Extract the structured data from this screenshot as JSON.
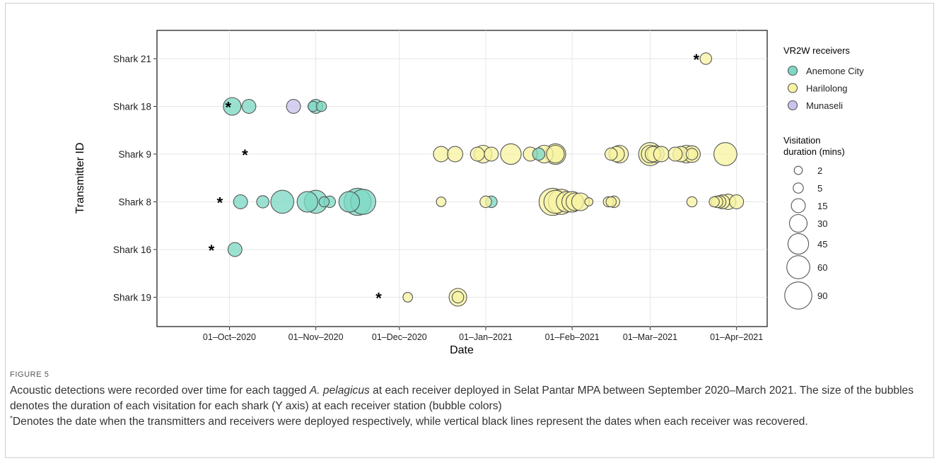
{
  "chart_data": {
    "type": "scatter",
    "subtype": "bubble",
    "xlabel": "Date",
    "ylabel": "Transmitter ID",
    "xlim": [
      "2020-09-05",
      "2021-04-12"
    ],
    "x_ticks": [
      {
        "date": "2020-10-01",
        "label": "01–Oct–2020"
      },
      {
        "date": "2020-11-01",
        "label": "01–Nov–2020"
      },
      {
        "date": "2020-12-01",
        "label": "01–Dec–2020"
      },
      {
        "date": "2021-01-01",
        "label": "01–Jan–2021"
      },
      {
        "date": "2021-02-01",
        "label": "01–Feb–2021"
      },
      {
        "date": "2021-03-01",
        "label": "01–Mar–2021"
      },
      {
        "date": "2021-04-01",
        "label": "01–Apr–2021"
      }
    ],
    "categories": [
      "Shark 21",
      "Shark 18",
      "Shark 9",
      "Shark 8",
      "Shark 16",
      "Shark 19"
    ],
    "grid": true,
    "legend_position": "right",
    "receivers_title": "VR2W receivers",
    "receivers": [
      {
        "name": "Anemone City",
        "color": "#7dd9c4"
      },
      {
        "name": "Harilolong",
        "color": "#f7f3a3"
      },
      {
        "name": "Munaseli",
        "color": "#c9c3ec"
      }
    ],
    "size_title_lines": [
      "Visitation",
      "duration (mins)"
    ],
    "size_legend": [
      2,
      5,
      15,
      30,
      45,
      60,
      90
    ],
    "deployments": [
      {
        "shark": "Shark 21",
        "date": "2021-03-18"
      },
      {
        "shark": "Shark 18",
        "date": "2020-10-01"
      },
      {
        "shark": "Shark 9",
        "date": "2020-10-07"
      },
      {
        "shark": "Shark 8",
        "date": "2020-09-28"
      },
      {
        "shark": "Shark 16",
        "date": "2020-09-25"
      },
      {
        "shark": "Shark 19",
        "date": "2020-11-24"
      }
    ],
    "series": [
      {
        "name": "Anemone City",
        "points": [
          {
            "shark": "Shark 18",
            "date": "2020-10-02",
            "duration": 30
          },
          {
            "shark": "Shark 18",
            "date": "2020-10-08",
            "duration": 15
          },
          {
            "shark": "Shark 18",
            "date": "2020-10-31",
            "duration": 5
          },
          {
            "shark": "Shark 18",
            "date": "2020-11-01",
            "duration": 15
          },
          {
            "shark": "Shark 18",
            "date": "2020-11-03",
            "duration": 5
          },
          {
            "shark": "Shark 16",
            "date": "2020-10-03",
            "duration": 15
          },
          {
            "shark": "Shark 8",
            "date": "2020-10-05",
            "duration": 15
          },
          {
            "shark": "Shark 8",
            "date": "2020-10-13",
            "duration": 10
          },
          {
            "shark": "Shark 8",
            "date": "2020-10-20",
            "duration": 60
          },
          {
            "shark": "Shark 8",
            "date": "2020-10-29",
            "duration": 45
          },
          {
            "shark": "Shark 8",
            "date": "2020-11-01",
            "duration": 60
          },
          {
            "shark": "Shark 8",
            "date": "2020-11-04",
            "duration": 5
          },
          {
            "shark": "Shark 8",
            "date": "2020-11-06",
            "duration": 8
          },
          {
            "shark": "Shark 8",
            "date": "2020-11-13",
            "duration": 45
          },
          {
            "shark": "Shark 8",
            "date": "2020-11-16",
            "duration": 90
          },
          {
            "shark": "Shark 8",
            "date": "2020-11-18",
            "duration": 75
          },
          {
            "shark": "Shark 8",
            "date": "2021-01-03",
            "duration": 8
          },
          {
            "shark": "Shark 9",
            "date": "2021-01-20",
            "duration": 10
          }
        ]
      },
      {
        "name": "Harilolong",
        "points": [
          {
            "shark": "Shark 21",
            "date": "2021-03-21",
            "duration": 8
          },
          {
            "shark": "Shark 19",
            "date": "2020-12-04",
            "duration": 4
          },
          {
            "shark": "Shark 19",
            "date": "2020-12-22",
            "duration": 30
          },
          {
            "shark": "Shark 19",
            "date": "2020-12-22",
            "duration": 8
          },
          {
            "shark": "Shark 9",
            "date": "2020-12-16",
            "duration": 20
          },
          {
            "shark": "Shark 9",
            "date": "2020-12-21",
            "duration": 20
          },
          {
            "shark": "Shark 9",
            "date": "2020-12-29",
            "duration": 15
          },
          {
            "shark": "Shark 9",
            "date": "2020-12-31",
            "duration": 30
          },
          {
            "shark": "Shark 9",
            "date": "2021-01-03",
            "duration": 15
          },
          {
            "shark": "Shark 9",
            "date": "2021-01-10",
            "duration": 45
          },
          {
            "shark": "Shark 9",
            "date": "2021-01-17",
            "duration": 15
          },
          {
            "shark": "Shark 9",
            "date": "2021-01-22",
            "duration": 30
          },
          {
            "shark": "Shark 9",
            "date": "2021-01-26",
            "duration": 45
          },
          {
            "shark": "Shark 9",
            "date": "2021-01-26",
            "duration": 30
          },
          {
            "shark": "Shark 9",
            "date": "2021-02-15",
            "duration": 10
          },
          {
            "shark": "Shark 9",
            "date": "2021-02-17",
            "duration": 20
          },
          {
            "shark": "Shark 9",
            "date": "2021-02-18",
            "duration": 30
          },
          {
            "shark": "Shark 9",
            "date": "2021-03-01",
            "duration": 60
          },
          {
            "shark": "Shark 9",
            "date": "2021-03-01",
            "duration": 30
          },
          {
            "shark": "Shark 9",
            "date": "2021-03-02",
            "duration": 20
          },
          {
            "shark": "Shark 9",
            "date": "2021-03-03",
            "duration": 25
          },
          {
            "shark": "Shark 9",
            "date": "2021-03-05",
            "duration": 20
          },
          {
            "shark": "Shark 9",
            "date": "2021-03-10",
            "duration": 15
          },
          {
            "shark": "Shark 9",
            "date": "2021-03-12",
            "duration": 20
          },
          {
            "shark": "Shark 9",
            "date": "2021-03-14",
            "duration": 30
          },
          {
            "shark": "Shark 9",
            "date": "2021-03-16",
            "duration": 25
          },
          {
            "shark": "Shark 9",
            "date": "2021-03-16",
            "duration": 8
          },
          {
            "shark": "Shark 9",
            "date": "2021-03-28",
            "duration": 60
          },
          {
            "shark": "Shark 8",
            "date": "2020-12-16",
            "duration": 4
          },
          {
            "shark": "Shark 8",
            "date": "2021-01-01",
            "duration": 8
          },
          {
            "shark": "Shark 8",
            "date": "2021-01-25",
            "duration": 90
          },
          {
            "shark": "Shark 8",
            "date": "2021-01-26",
            "duration": 60
          },
          {
            "shark": "Shark 8",
            "date": "2021-01-28",
            "duration": 75
          },
          {
            "shark": "Shark 8",
            "date": "2021-01-30",
            "duration": 45
          },
          {
            "shark": "Shark 8",
            "date": "2021-02-01",
            "duration": 45
          },
          {
            "shark": "Shark 8",
            "date": "2021-02-02",
            "duration": 30
          },
          {
            "shark": "Shark 8",
            "date": "2021-02-04",
            "duration": 30
          },
          {
            "shark": "Shark 8",
            "date": "2021-02-07",
            "duration": 2
          },
          {
            "shark": "Shark 8",
            "date": "2021-02-14",
            "duration": 5
          },
          {
            "shark": "Shark 8",
            "date": "2021-02-15",
            "duration": 5
          },
          {
            "shark": "Shark 8",
            "date": "2021-02-16",
            "duration": 8
          },
          {
            "shark": "Shark 8",
            "date": "2021-03-16",
            "duration": 5
          },
          {
            "shark": "Shark 8",
            "date": "2021-03-24",
            "duration": 5
          },
          {
            "shark": "Shark 8",
            "date": "2021-03-25",
            "duration": 8
          },
          {
            "shark": "Shark 8",
            "date": "2021-03-26",
            "duration": 10
          },
          {
            "shark": "Shark 8",
            "date": "2021-03-27",
            "duration": 15
          },
          {
            "shark": "Shark 8",
            "date": "2021-03-29",
            "duration": 20
          },
          {
            "shark": "Shark 8",
            "date": "2021-04-01",
            "duration": 15
          }
        ]
      },
      {
        "name": "Munaseli",
        "points": [
          {
            "shark": "Shark 18",
            "date": "2020-10-24",
            "duration": 15
          }
        ]
      }
    ]
  },
  "caption": {
    "label": "FIGURE 5",
    "line1_pre": "Acoustic detections were recorded over time for each tagged ",
    "species": "A. pelagicus",
    "line1_post": " at each receiver deployed in Selat Pantar MPA between September 2020–March 2021. The size of the bubbles denotes the duration of each visitation for each shark (Y axis) at each receiver station (bubble colors)",
    "star": "*",
    "line2": "Denotes the date when the transmitters and receivers were deployed respectively, while vertical black lines represent the dates when each receiver was recovered."
  }
}
